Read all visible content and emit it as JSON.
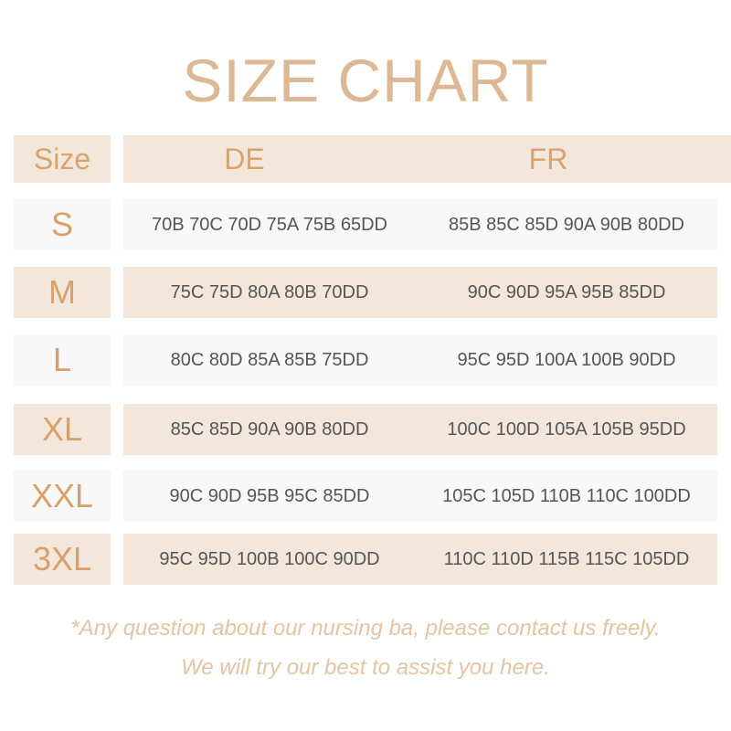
{
  "header": {
    "title": "SIZE CHART"
  },
  "table": {
    "columns": [
      "Size",
      "DE",
      "FR"
    ],
    "rows": [
      [
        "S",
        "70B 70C 70D 75A 75B 65DD",
        "85B 85C 85D 90A 90B 80DD"
      ],
      [
        "M",
        "75C 75D 80A 80B 70DD",
        "90C 90D 95A 95B 85DD"
      ],
      [
        "L",
        "80C 80D 85A 85B 75DD",
        "95C 95D 100A 100B 90DD"
      ],
      [
        "XL",
        "85C 85D 90A 90B 80DD",
        "100C 100D 105A 105B 95DD"
      ],
      [
        "XXL",
        "90C 90D 95B 95C 85DD",
        "105C 105D 110B 110C 100DD"
      ],
      [
        "3XL",
        "95C 95D 100B 100C 90DD",
        "110C 110D 115B 115C 105DD"
      ]
    ]
  },
  "footer": {
    "lines": [
      "*Any question about our nursing ba, please contact us freely.",
      "We will try our best to assist you here."
    ]
  }
}
